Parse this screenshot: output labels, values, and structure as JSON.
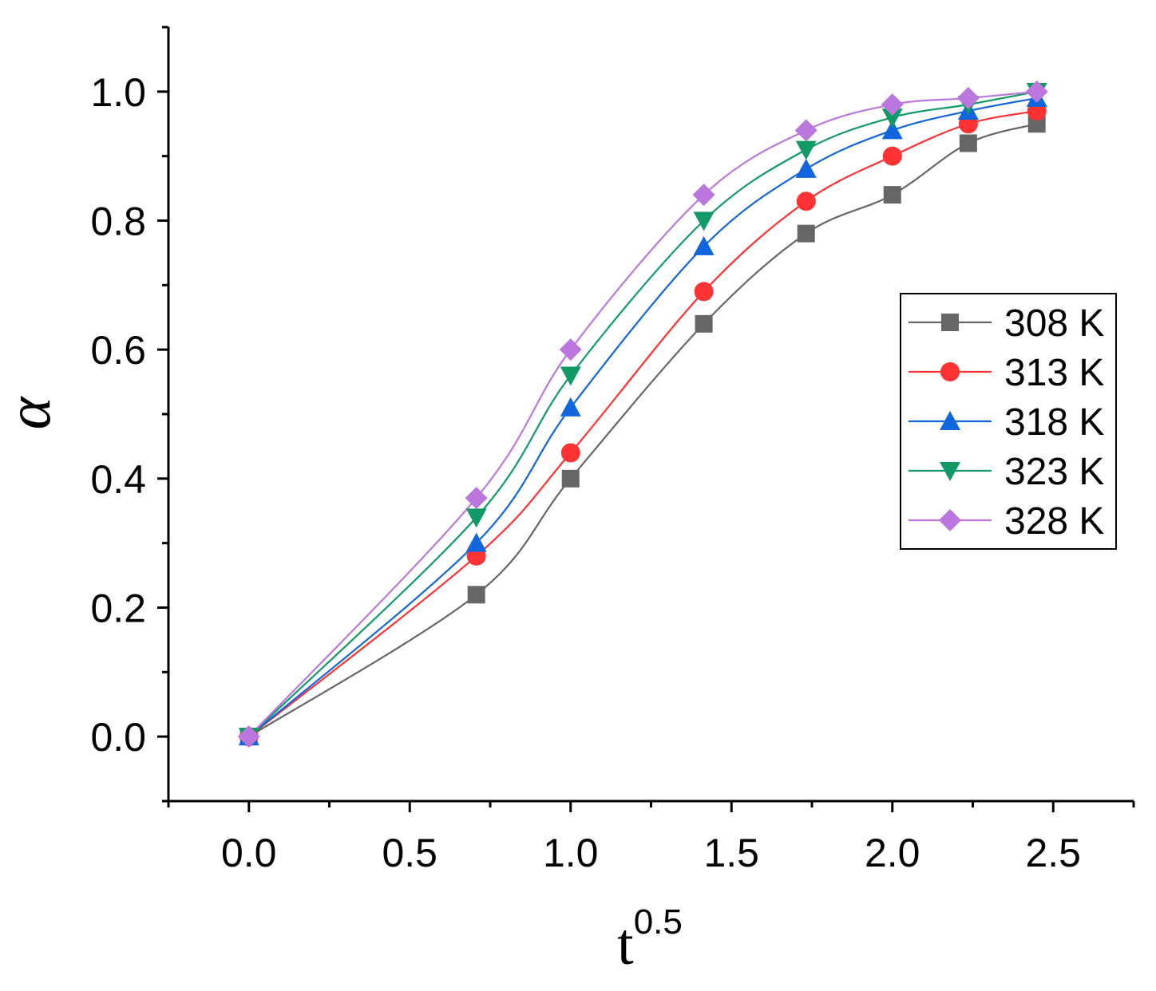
{
  "chart_data": {
    "type": "line",
    "title": "",
    "xlabel": "t",
    "xlabel_superscript": "0.5",
    "ylabel": "α",
    "xlim": [
      -0.25,
      2.75
    ],
    "ylim": [
      -0.1,
      1.1
    ],
    "x_major_ticks": [
      0.0,
      0.5,
      1.0,
      1.5,
      2.0,
      2.5
    ],
    "x_tick_labels": [
      "0.0",
      "0.5",
      "1.0",
      "1.5",
      "2.0",
      "2.5"
    ],
    "y_major_ticks": [
      0.0,
      0.2,
      0.4,
      0.6,
      0.8,
      1.0
    ],
    "y_tick_labels": [
      "0.0",
      "0.2",
      "0.4",
      "0.6",
      "0.8",
      "1.0"
    ],
    "grid": false,
    "legend_position": "right",
    "x": [
      0,
      0.707,
      1.0,
      1.414,
      1.732,
      2.0,
      2.236,
      2.449
    ],
    "series": [
      {
        "name": "308 K",
        "color": "#666666",
        "marker": "square",
        "values": [
          0,
          0.22,
          0.4,
          0.64,
          0.78,
          0.84,
          0.92,
          0.95
        ]
      },
      {
        "name": "313 K",
        "color": "#ff3333",
        "marker": "circle",
        "values": [
          0,
          0.28,
          0.44,
          0.69,
          0.83,
          0.9,
          0.95,
          0.97
        ]
      },
      {
        "name": "318 K",
        "color": "#1166dd",
        "marker": "triangle-up",
        "values": [
          0,
          0.3,
          0.51,
          0.76,
          0.88,
          0.94,
          0.97,
          0.99
        ]
      },
      {
        "name": "323 K",
        "color": "#119966",
        "marker": "triangle-down",
        "values": [
          0,
          0.34,
          0.56,
          0.8,
          0.91,
          0.96,
          0.98,
          1.0
        ]
      },
      {
        "name": "328 K",
        "color": "#bb77dd",
        "marker": "diamond",
        "values": [
          0,
          0.37,
          0.6,
          0.84,
          0.94,
          0.98,
          0.99,
          1.0
        ]
      }
    ]
  }
}
